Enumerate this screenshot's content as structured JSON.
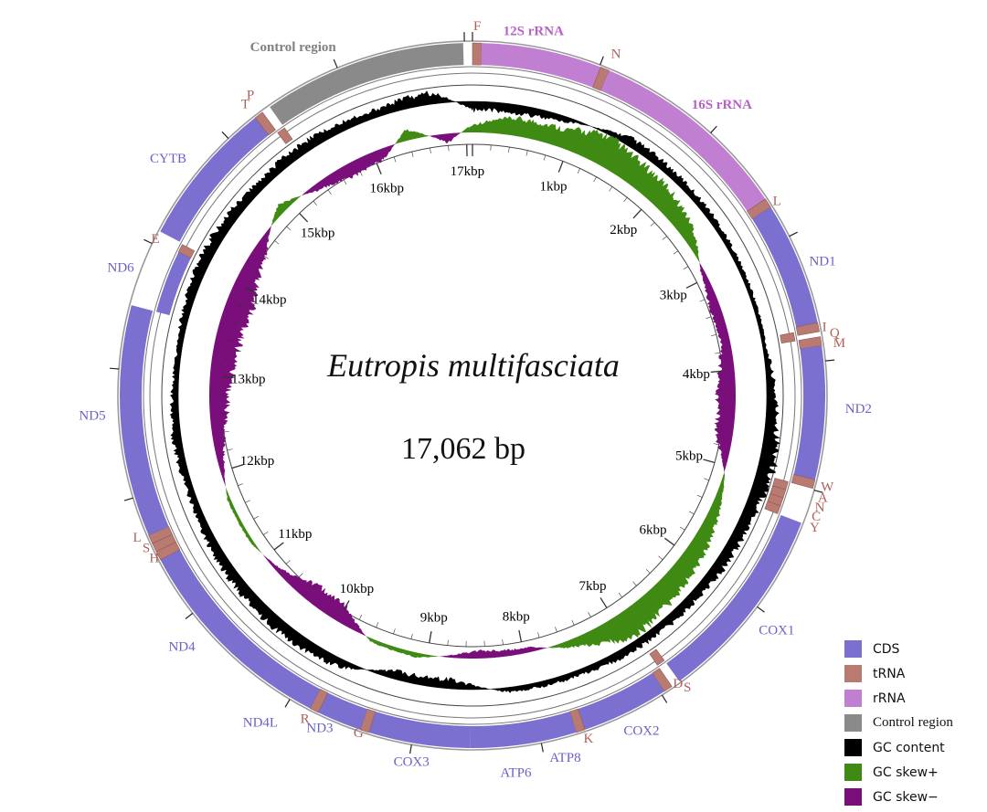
{
  "map": {
    "species": "Eutropis multifasciata",
    "length_text": "17,062 bp",
    "total_bp": 17062,
    "colors": {
      "CDS": "#7b6fcf",
      "tRNA": "#b97a72",
      "rRNA": "#c07fd0",
      "Control region": "#8a8a8a",
      "GC content": "#000000",
      "GC skew+": "#3f8a12",
      "GC skew-": "#7a0e7a",
      "label_cds": "#6a62c8",
      "label_trna": "#b0605a",
      "label_rrna": "#b860c8",
      "label_control": "#808080"
    },
    "features": [
      {
        "name": "F",
        "type": "tRNA",
        "start": 0,
        "end": 70,
        "strand": "+"
      },
      {
        "name": "12S rRNA",
        "type": "rRNA",
        "start": 70,
        "end": 1010,
        "strand": "+"
      },
      {
        "name": "N",
        "type": "tRNA",
        "start": 1010,
        "end": 1080,
        "strand": "+"
      },
      {
        "name": "16S rRNA",
        "type": "rRNA",
        "start": 1080,
        "end": 2660,
        "strand": "+"
      },
      {
        "name": "L",
        "type": "tRNA",
        "start": 2660,
        "end": 2735,
        "strand": "+"
      },
      {
        "name": "ND1",
        "type": "CDS",
        "start": 2735,
        "end": 3700,
        "strand": "+"
      },
      {
        "name": "I",
        "type": "tRNA",
        "start": 3700,
        "end": 3770,
        "strand": "+"
      },
      {
        "name": "Q",
        "type": "tRNA",
        "start": 3740,
        "end": 3810,
        "strand": "-"
      },
      {
        "name": "M",
        "type": "tRNA",
        "start": 3810,
        "end": 3880,
        "strand": "+"
      },
      {
        "name": "ND2",
        "type": "CDS",
        "start": 3880,
        "end": 4920,
        "strand": "+"
      },
      {
        "name": "W",
        "type": "tRNA",
        "start": 4920,
        "end": 4990,
        "strand": "+"
      },
      {
        "name": "A",
        "type": "tRNA",
        "start": 4990,
        "end": 5060,
        "strand": "-"
      },
      {
        "name": "N",
        "type": "tRNA",
        "start": 5060,
        "end": 5130,
        "strand": "-"
      },
      {
        "name": "C",
        "type": "tRNA",
        "start": 5130,
        "end": 5200,
        "strand": "-"
      },
      {
        "name": "Y",
        "type": "tRNA",
        "start": 5200,
        "end": 5270,
        "strand": "-"
      },
      {
        "name": "COX1",
        "type": "CDS",
        "start": 5270,
        "end": 6830,
        "strand": "+"
      },
      {
        "name": "S",
        "type": "tRNA",
        "start": 6830,
        "end": 6900,
        "strand": "-"
      },
      {
        "name": "D",
        "type": "tRNA",
        "start": 6900,
        "end": 6970,
        "strand": "+"
      },
      {
        "name": "COX2",
        "type": "CDS",
        "start": 6970,
        "end": 7650,
        "strand": "+"
      },
      {
        "name": "K",
        "type": "tRNA",
        "start": 7650,
        "end": 7720,
        "strand": "+"
      },
      {
        "name": "ATP8",
        "type": "CDS",
        "start": 7720,
        "end": 7880,
        "strand": "+"
      },
      {
        "name": "ATP6",
        "type": "CDS",
        "start": 7870,
        "end": 8550,
        "strand": "+"
      },
      {
        "name": "COX3",
        "type": "CDS",
        "start": 8550,
        "end": 9340,
        "strand": "+"
      },
      {
        "name": "G",
        "type": "tRNA",
        "start": 9340,
        "end": 9410,
        "strand": "+"
      },
      {
        "name": "ND3",
        "type": "CDS",
        "start": 9410,
        "end": 9760,
        "strand": "+"
      },
      {
        "name": "R",
        "type": "tRNA",
        "start": 9760,
        "end": 9830,
        "strand": "+"
      },
      {
        "name": "ND4L",
        "type": "CDS",
        "start": 9830,
        "end": 10120,
        "strand": "+"
      },
      {
        "name": "ND4",
        "type": "CDS",
        "start": 10110,
        "end": 11480,
        "strand": "+"
      },
      {
        "name": "H",
        "type": "tRNA",
        "start": 11480,
        "end": 11550,
        "strand": "+"
      },
      {
        "name": "S",
        "type": "tRNA",
        "start": 11550,
        "end": 11620,
        "strand": "+"
      },
      {
        "name": "L",
        "type": "tRNA",
        "start": 11620,
        "end": 11690,
        "strand": "+"
      },
      {
        "name": "ND5",
        "type": "CDS",
        "start": 11690,
        "end": 13500,
        "strand": "+"
      },
      {
        "name": "ND6",
        "type": "CDS",
        "start": 13500,
        "end": 14030,
        "strand": "-"
      },
      {
        "name": "E",
        "type": "tRNA",
        "start": 14030,
        "end": 14100,
        "strand": "-"
      },
      {
        "name": "CYTB",
        "type": "CDS",
        "start": 14110,
        "end": 15260,
        "strand": "+"
      },
      {
        "name": "T",
        "type": "tRNA",
        "start": 15260,
        "end": 15330,
        "strand": "+"
      },
      {
        "name": "P",
        "type": "tRNA",
        "start": 15330,
        "end": 15400,
        "strand": "-"
      },
      {
        "name": "Control region",
        "type": "Control region",
        "start": 15400,
        "end": 16990,
        "strand": "+"
      }
    ],
    "labels": [
      {
        "text": "F",
        "type": "tRNA",
        "at": 35,
        "r": 383
      },
      {
        "text": "12S rRNA",
        "type": "rRNA",
        "at": 450,
        "r": 383
      },
      {
        "text": "N",
        "type": "tRNA",
        "at": 1045,
        "r": 382
      },
      {
        "text": "16S rRNA",
        "type": "rRNA",
        "at": 1750,
        "r": 377
      },
      {
        "text": "L",
        "type": "tRNA",
        "at": 2700,
        "r": 370
      },
      {
        "text": "ND1",
        "type": "CDS",
        "at": 3230,
        "r": 375
      },
      {
        "text": "I",
        "type": "tRNA",
        "at": 3735,
        "r": 368
      },
      {
        "text": "Q",
        "type": "tRNA",
        "at": 3790,
        "r": 375
      },
      {
        "text": "M",
        "type": "tRNA",
        "at": 3870,
        "r": 377
      },
      {
        "text": "ND2",
        "type": "CDS",
        "at": 4360,
        "r": 386
      },
      {
        "text": "W",
        "type": "tRNA",
        "at": 4960,
        "r": 372
      },
      {
        "text": "A",
        "type": "tRNA",
        "at": 5045,
        "r": 372
      },
      {
        "text": "N",
        "type": "tRNA",
        "at": 5120,
        "r": 372
      },
      {
        "text": "C",
        "type": "tRNA",
        "at": 5195,
        "r": 372
      },
      {
        "text": "Y",
        "type": "tRNA",
        "at": 5275,
        "r": 374
      },
      {
        "text": "COX1",
        "type": "CDS",
        "at": 6130,
        "r": 383
      },
      {
        "text": "S",
        "type": "tRNA",
        "at": 6830,
        "r": 372
      },
      {
        "text": "D",
        "type": "tRNA",
        "at": 6880,
        "r": 362
      },
      {
        "text": "COX2",
        "type": "CDS",
        "at": 7380,
        "r": 380
      },
      {
        "text": "K",
        "type": "tRNA",
        "at": 7680,
        "r": 372
      },
      {
        "text": "ATP8",
        "type": "CDS",
        "at": 7850,
        "r": 387
      },
      {
        "text": "ATP6",
        "type": "CDS",
        "at": 8220,
        "r": 393
      },
      {
        "text": "COX3",
        "type": "CDS",
        "at": 8980,
        "r": 384
      },
      {
        "text": "G",
        "type": "tRNA",
        "at": 9380,
        "r": 366
      },
      {
        "text": "ND3",
        "type": "CDS",
        "at": 9610,
        "r": 372
      },
      {
        "text": "R",
        "type": "tRNA",
        "at": 9800,
        "r": 374
      },
      {
        "text": "ND4L",
        "type": "CDS",
        "at": 9990,
        "r": 394
      },
      {
        "text": "ND4",
        "type": "CDS",
        "at": 10800,
        "r": 387
      },
      {
        "text": "H",
        "type": "tRNA",
        "at": 11500,
        "r": 364
      },
      {
        "text": "S",
        "type": "tRNA",
        "at": 11600,
        "r": 368
      },
      {
        "text": "L",
        "type": "tRNA",
        "at": 11700,
        "r": 372
      },
      {
        "text": "ND5",
        "type": "CDS",
        "at": 12650,
        "r": 380
      },
      {
        "text": "ND6",
        "type": "CDS",
        "at": 13780,
        "r": 374
      },
      {
        "text": "E",
        "type": "tRNA",
        "at": 14060,
        "r": 361
      },
      {
        "text": "CYTB",
        "type": "CDS",
        "at": 14680,
        "r": 385
      },
      {
        "text": "T",
        "type": "tRNA",
        "at": 15290,
        "r": 380
      },
      {
        "text": "P",
        "type": "tRNA",
        "at": 15360,
        "r": 385
      },
      {
        "text": "Control region",
        "type": "Control region",
        "at": 16050,
        "r": 388
      }
    ],
    "ticks": [
      {
        "label": "1kbp",
        "bp": 1000
      },
      {
        "label": "2kbp",
        "bp": 2000
      },
      {
        "label": "3kbp",
        "bp": 3000
      },
      {
        "label": "4kbp",
        "bp": 4000
      },
      {
        "label": "5kbp",
        "bp": 5000
      },
      {
        "label": "6kbp",
        "bp": 6000
      },
      {
        "label": "7kbp",
        "bp": 7000
      },
      {
        "label": "8kbp",
        "bp": 8000
      },
      {
        "label": "9kbp",
        "bp": 9000
      },
      {
        "label": "10kbp",
        "bp": 10000
      },
      {
        "label": "11kbp",
        "bp": 11000
      },
      {
        "label": "12kbp",
        "bp": 12000
      },
      {
        "label": "13kbp",
        "bp": 13000
      },
      {
        "label": "14kbp",
        "bp": 14000
      },
      {
        "label": "15kbp",
        "bp": 15000
      },
      {
        "label": "16kbp",
        "bp": 16000
      },
      {
        "label": "17kbp",
        "bp": 17000
      }
    ],
    "gc_skew_profile": [
      {
        "bp": 0,
        "v": 0.25
      },
      {
        "bp": 400,
        "v": 0.55
      },
      {
        "bp": 900,
        "v": 0.6
      },
      {
        "bp": 1300,
        "v": 0.95
      },
      {
        "bp": 1600,
        "v": 0.8
      },
      {
        "bp": 2100,
        "v": 0.7
      },
      {
        "bp": 2500,
        "v": 0.45
      },
      {
        "bp": 2900,
        "v": -0.1
      },
      {
        "bp": 3300,
        "v": -0.35
      },
      {
        "bp": 3700,
        "v": -0.3
      },
      {
        "bp": 4200,
        "v": -0.6
      },
      {
        "bp": 4700,
        "v": -0.55
      },
      {
        "bp": 5100,
        "v": 0.05
      },
      {
        "bp": 5500,
        "v": 0.35
      },
      {
        "bp": 6000,
        "v": 0.6
      },
      {
        "bp": 6500,
        "v": 0.75
      },
      {
        "bp": 6900,
        "v": 0.9
      },
      {
        "bp": 7400,
        "v": 0.35
      },
      {
        "bp": 7900,
        "v": -0.15
      },
      {
        "bp": 8500,
        "v": -0.25
      },
      {
        "bp": 9100,
        "v": 0.15
      },
      {
        "bp": 9600,
        "v": 0.1
      },
      {
        "bp": 10000,
        "v": -0.55
      },
      {
        "bp": 10400,
        "v": -0.6
      },
      {
        "bp": 10800,
        "v": -0.15
      },
      {
        "bp": 11200,
        "v": 0.1
      },
      {
        "bp": 11700,
        "v": 0.1
      },
      {
        "bp": 12100,
        "v": -0.2
      },
      {
        "bp": 12600,
        "v": -0.55
      },
      {
        "bp": 13200,
        "v": -0.75
      },
      {
        "bp": 13800,
        "v": -0.85
      },
      {
        "bp": 14400,
        "v": -0.45
      },
      {
        "bp": 14900,
        "v": 0.3
      },
      {
        "bp": 15300,
        "v": -0.2
      },
      {
        "bp": 15700,
        "v": -0.45
      },
      {
        "bp": 16100,
        "v": -0.35
      },
      {
        "bp": 16400,
        "v": 0.35
      },
      {
        "bp": 16800,
        "v": -0.3
      },
      {
        "bp": 17062,
        "v": 0.25
      }
    ],
    "gc_content_profile": [
      {
        "bp": 0,
        "v": -0.5
      },
      {
        "bp": 800,
        "v": -0.4
      },
      {
        "bp": 1500,
        "v": 0.45
      },
      {
        "bp": 2500,
        "v": 0.35
      },
      {
        "bp": 3000,
        "v": 0.25
      },
      {
        "bp": 3800,
        "v": 0.2
      },
      {
        "bp": 4300,
        "v": 0.5
      },
      {
        "bp": 4800,
        "v": 0.85
      },
      {
        "bp": 5500,
        "v": 0.65
      },
      {
        "bp": 6200,
        "v": 0.5
      },
      {
        "bp": 7000,
        "v": 0.45
      },
      {
        "bp": 7600,
        "v": 0.3
      },
      {
        "bp": 8200,
        "v": 0.25
      },
      {
        "bp": 8700,
        "v": -0.5
      },
      {
        "bp": 9300,
        "v": -0.45
      },
      {
        "bp": 9800,
        "v": 0.5
      },
      {
        "bp": 10500,
        "v": 0.65
      },
      {
        "bp": 11200,
        "v": 0.55
      },
      {
        "bp": 11800,
        "v": 0.35
      },
      {
        "bp": 12400,
        "v": 0.45
      },
      {
        "bp": 13200,
        "v": 0.25
      },
      {
        "bp": 13800,
        "v": 0.5
      },
      {
        "bp": 14300,
        "v": 0.6
      },
      {
        "bp": 14900,
        "v": 0.45
      },
      {
        "bp": 15500,
        "v": 0.55
      },
      {
        "bp": 16100,
        "v": 0.4
      },
      {
        "bp": 16700,
        "v": 0.65
      },
      {
        "bp": 17062,
        "v": -0.5
      }
    ]
  },
  "legend": {
    "items": [
      {
        "label": "CDS",
        "color": "#7b6fcf"
      },
      {
        "label": "tRNA",
        "color": "#b97a72"
      },
      {
        "label": "rRNA",
        "color": "#c07fd0"
      },
      {
        "label": "Control region",
        "color": "#8a8a8a"
      },
      {
        "label": "GC content",
        "color": "#000000"
      },
      {
        "label": "GC skew+",
        "color": "#3f8a12"
      },
      {
        "label": "GC skew−",
        "color": "#7a0e7a"
      }
    ]
  }
}
